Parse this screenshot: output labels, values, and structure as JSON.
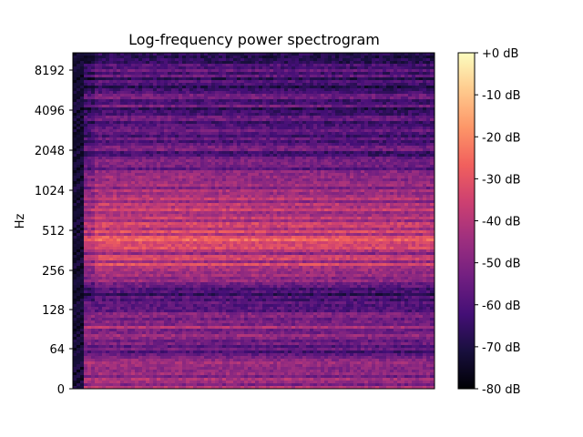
{
  "chart_data": {
    "type": "heatmap",
    "title": "Log-frequency power spectrogram",
    "ylabel": "Hz",
    "xlabel": "",
    "y_scale": "log2-like (0 at bottom)",
    "y_ticks": [
      "0",
      "64",
      "128",
      "256",
      "512",
      "1024",
      "2048",
      "4096",
      "8192"
    ],
    "ylim_hz": [
      0,
      11025
    ],
    "colorbar": {
      "label_ticks": [
        "+0 dB",
        "-10 dB",
        "-20 dB",
        "-30 dB",
        "-40 dB",
        "-50 dB",
        "-60 dB",
        "-70 dB",
        "-80 dB"
      ],
      "range_db": [
        -80,
        0
      ],
      "colormap": "magma",
      "colormap_stops": [
        "#000004",
        "#180f3d",
        "#440f76",
        "#721f81",
        "#9e2f7f",
        "#cd4071",
        "#f1605d",
        "#fd9668",
        "#feca8d",
        "#fcfdbf"
      ]
    },
    "bands_db": [
      {
        "hz": 40,
        "db": -45
      },
      {
        "hz": 64,
        "db": -55
      },
      {
        "hz": 90,
        "db": -45
      },
      {
        "hz": 128,
        "db": -55
      },
      {
        "hz": 180,
        "db": -60
      },
      {
        "hz": 256,
        "db": -35
      },
      {
        "hz": 330,
        "db": -40
      },
      {
        "hz": 400,
        "db": -30
      },
      {
        "hz": 512,
        "db": -35
      },
      {
        "hz": 700,
        "db": -38
      },
      {
        "hz": 1024,
        "db": -48
      },
      {
        "hz": 2048,
        "db": -55
      },
      {
        "hz": 4096,
        "db": -58
      },
      {
        "hz": 8192,
        "db": -60
      }
    ],
    "grid": false,
    "legend": "colorbar-right"
  }
}
